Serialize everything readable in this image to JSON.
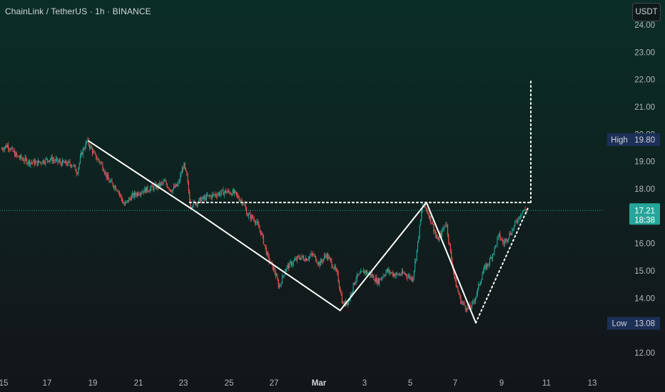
{
  "header": {
    "title": "ChainLink / TetherUS · 1h · BINANCE",
    "currency_button": "USDT"
  },
  "colors": {
    "up": "#26a69a",
    "down": "#ef5350",
    "drawing": "#ffffff",
    "price_line": "#26a69a",
    "marker_bg": "#1c2f56",
    "marker_value_bg": "#2a2e39"
  },
  "chart_data": {
    "type": "candlestick",
    "symbol": "ChainLink / TetherUS",
    "interval": "1h",
    "exchange": "BINANCE",
    "y_axis": {
      "ticks": [
        "24.00",
        "23.00",
        "22.00",
        "21.00",
        "20.00",
        "19.00",
        "18.00",
        "17.00",
        "16.00",
        "15.00",
        "14.00",
        "13.00",
        "12.00"
      ],
      "range": [
        11.5,
        24.3
      ]
    },
    "x_axis": {
      "ticks": [
        "15",
        "17",
        "19",
        "21",
        "23",
        "25",
        "27",
        "Mar",
        "3",
        "5",
        "7",
        "9",
        "11",
        "13"
      ],
      "bold": [
        "Mar"
      ],
      "range_days": [
        -14.2,
        14.25
      ]
    },
    "price_path": [
      {
        "t": -14.2,
        "p": 19.45
      },
      {
        "t": -13.9,
        "p": 19.6
      },
      {
        "t": -13.5,
        "p": 19.2
      },
      {
        "t": -13.0,
        "p": 19.0
      },
      {
        "t": -12.6,
        "p": 18.95
      },
      {
        "t": -12.0,
        "p": 19.1
      },
      {
        "t": -11.5,
        "p": 18.95
      },
      {
        "t": -11.0,
        "p": 18.9
      },
      {
        "t": -10.8,
        "p": 18.6
      },
      {
        "t": -10.6,
        "p": 19.3
      },
      {
        "t": -10.35,
        "p": 19.75
      },
      {
        "t": -10.0,
        "p": 19.2
      },
      {
        "t": -9.7,
        "p": 18.9
      },
      {
        "t": -9.4,
        "p": 18.3
      },
      {
        "t": -9.0,
        "p": 18.0
      },
      {
        "t": -8.7,
        "p": 17.4
      },
      {
        "t": -8.4,
        "p": 17.7
      },
      {
        "t": -8.0,
        "p": 17.9
      },
      {
        "t": -7.6,
        "p": 18.0
      },
      {
        "t": -7.2,
        "p": 18.1
      },
      {
        "t": -6.9,
        "p": 18.25
      },
      {
        "t": -6.6,
        "p": 17.95
      },
      {
        "t": -6.3,
        "p": 18.15
      },
      {
        "t": -6.05,
        "p": 18.9
      },
      {
        "t": -5.9,
        "p": 18.4
      },
      {
        "t": -5.75,
        "p": 17.4
      },
      {
        "t": -5.4,
        "p": 17.55
      },
      {
        "t": -5.0,
        "p": 17.7
      },
      {
        "t": -4.6,
        "p": 17.8
      },
      {
        "t": -4.2,
        "p": 17.9
      },
      {
        "t": -3.8,
        "p": 17.85
      },
      {
        "t": -3.4,
        "p": 17.5
      },
      {
        "t": -3.2,
        "p": 17.05
      },
      {
        "t": -2.9,
        "p": 16.9
      },
      {
        "t": -2.6,
        "p": 16.4
      },
      {
        "t": -2.3,
        "p": 15.5
      },
      {
        "t": -2.0,
        "p": 15.0
      },
      {
        "t": -1.8,
        "p": 14.4
      },
      {
        "t": -1.5,
        "p": 15.1
      },
      {
        "t": -1.2,
        "p": 15.3
      },
      {
        "t": -0.9,
        "p": 15.5
      },
      {
        "t": -0.6,
        "p": 15.45
      },
      {
        "t": -0.3,
        "p": 15.6
      },
      {
        "t": 0.0,
        "p": 15.25
      },
      {
        "t": 0.3,
        "p": 15.6
      },
      {
        "t": 0.6,
        "p": 15.2
      },
      {
        "t": 0.8,
        "p": 14.85
      },
      {
        "t": 1.05,
        "p": 13.75
      },
      {
        "t": 1.3,
        "p": 13.9
      },
      {
        "t": 1.6,
        "p": 14.7
      },
      {
        "t": 2.0,
        "p": 15.0
      },
      {
        "t": 2.3,
        "p": 14.85
      },
      {
        "t": 2.6,
        "p": 14.6
      },
      {
        "t": 3.0,
        "p": 15.0
      },
      {
        "t": 3.4,
        "p": 14.85
      },
      {
        "t": 3.8,
        "p": 14.9
      },
      {
        "t": 4.15,
        "p": 14.7
      },
      {
        "t": 4.35,
        "p": 15.8
      },
      {
        "t": 4.6,
        "p": 17.45
      },
      {
        "t": 4.8,
        "p": 17.2
      },
      {
        "t": 5.0,
        "p": 16.8
      },
      {
        "t": 5.25,
        "p": 16.1
      },
      {
        "t": 5.45,
        "p": 16.4
      },
      {
        "t": 5.65,
        "p": 16.8
      },
      {
        "t": 5.85,
        "p": 15.6
      },
      {
        "t": 6.05,
        "p": 14.6
      },
      {
        "t": 6.3,
        "p": 13.9
      },
      {
        "t": 6.6,
        "p": 13.6
      },
      {
        "t": 6.85,
        "p": 13.8
      },
      {
        "t": 7.05,
        "p": 14.3
      },
      {
        "t": 7.3,
        "p": 15.0
      },
      {
        "t": 7.55,
        "p": 15.3
      },
      {
        "t": 7.8,
        "p": 15.8
      },
      {
        "t": 8.0,
        "p": 16.3
      },
      {
        "t": 8.2,
        "p": 16.0
      },
      {
        "t": 8.4,
        "p": 16.25
      },
      {
        "t": 8.6,
        "p": 16.5
      },
      {
        "t": 8.8,
        "p": 16.85
      },
      {
        "t": 9.05,
        "p": 17.2
      },
      {
        "t": 9.25,
        "p": 17.21
      }
    ],
    "current_price": {
      "value": "17.21",
      "countdown": "18:38",
      "price": 17.21
    },
    "high_marker": {
      "label": "High",
      "value": "19.80",
      "price": 19.8
    },
    "low_marker": {
      "label": "Low",
      "value": "13.08",
      "price": 13.08
    },
    "drawings": {
      "solid_lines": [
        [
          {
            "t": -10.3,
            "p": 19.75
          },
          {
            "t": -5.5,
            "p": 17.15
          }
        ],
        [
          {
            "t": -5.5,
            "p": 17.15
          },
          {
            "t": 0.9,
            "p": 13.55
          }
        ],
        [
          {
            "t": 0.9,
            "p": 13.55
          },
          {
            "t": 4.75,
            "p": 17.5
          }
        ],
        [
          {
            "t": 4.75,
            "p": 17.5
          },
          {
            "t": 6.95,
            "p": 13.1
          }
        ]
      ],
      "dotted_lines": [
        [
          {
            "t": -5.8,
            "p": 17.5
          },
          {
            "t": 9.4,
            "p": 17.5
          }
        ],
        [
          {
            "t": 9.4,
            "p": 17.5
          },
          {
            "t": 9.4,
            "p": 22.0
          }
        ],
        [
          {
            "t": 6.95,
            "p": 13.1
          },
          {
            "t": 9.3,
            "p": 17.35
          }
        ]
      ]
    }
  }
}
